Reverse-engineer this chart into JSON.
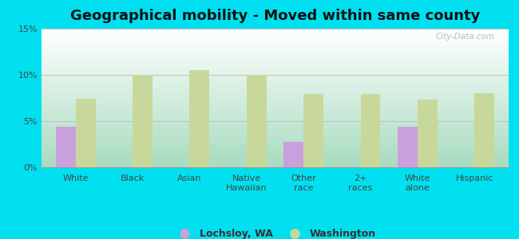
{
  "title": "Geographical mobility - Moved within same county",
  "categories": [
    "White",
    "Black",
    "Asian",
    "Native\nHawaiian",
    "Other\nrace",
    "2+\nraces",
    "White\nalone",
    "Hispanic"
  ],
  "lochsloy_values": [
    4.4,
    0,
    0,
    0,
    2.8,
    0,
    4.4,
    0
  ],
  "washington_values": [
    7.4,
    10.0,
    10.5,
    10.0,
    7.9,
    7.9,
    7.3,
    8.0
  ],
  "lochsloy_color": "#c9a0dc",
  "washington_color": "#c8d89a",
  "background_outer": "#00e0f0",
  "ylim": [
    0,
    15
  ],
  "yticks": [
    0,
    5,
    10,
    15
  ],
  "ytick_labels": [
    "0%",
    "5%",
    "10%",
    "15%"
  ],
  "bar_width": 0.35,
  "legend_lochsloy": "Lochsloy, WA",
  "legend_washington": "Washington",
  "grid_color": "#bbbbbb",
  "title_fontsize": 13,
  "tick_fontsize": 8,
  "watermark": "City-Data.com"
}
